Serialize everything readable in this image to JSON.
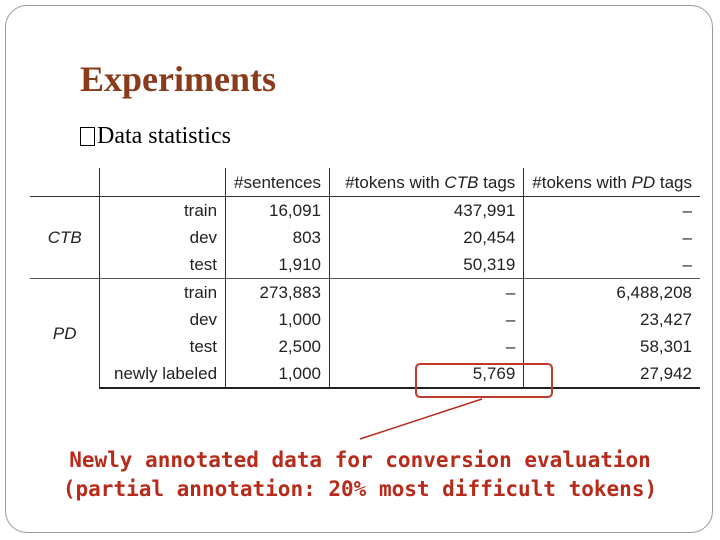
{
  "slide": {
    "title": "Experiments",
    "bullet_marker": "",
    "bullet_text": "Data statistics"
  },
  "table": {
    "headers": {
      "sentences": "#sentences",
      "ctb_prefix": "#tokens with ",
      "ctb_em": "CTB",
      "ctb_suffix": " tags",
      "pd_prefix": "#tokens with ",
      "pd_em": "PD",
      "pd_suffix": " tags"
    },
    "groups": [
      {
        "name": "CTB",
        "rows": [
          {
            "split": "train",
            "sentences": "16,091",
            "ctb_tokens": "437,991",
            "pd_tokens": "–"
          },
          {
            "split": "dev",
            "sentences": "803",
            "ctb_tokens": "20,454",
            "pd_tokens": "–"
          },
          {
            "split": "test",
            "sentences": "1,910",
            "ctb_tokens": "50,319",
            "pd_tokens": "–"
          }
        ]
      },
      {
        "name": "PD",
        "rows": [
          {
            "split": "train",
            "sentences": "273,883",
            "ctb_tokens": "–",
            "pd_tokens": "6,488,208"
          },
          {
            "split": "dev",
            "sentences": "1,000",
            "ctb_tokens": "–",
            "pd_tokens": "23,427"
          },
          {
            "split": "test",
            "sentences": "2,500",
            "ctb_tokens": "–",
            "pd_tokens": "58,301"
          },
          {
            "split": "newly labeled",
            "sentences": "1,000",
            "ctb_tokens": "5,769",
            "pd_tokens": "27,942"
          }
        ]
      }
    ]
  },
  "annotation": {
    "line1": "Newly annotated data for conversion evaluation",
    "line2": "(partial annotation: 20% most difficult tokens)",
    "color": "#b82a1a"
  }
}
